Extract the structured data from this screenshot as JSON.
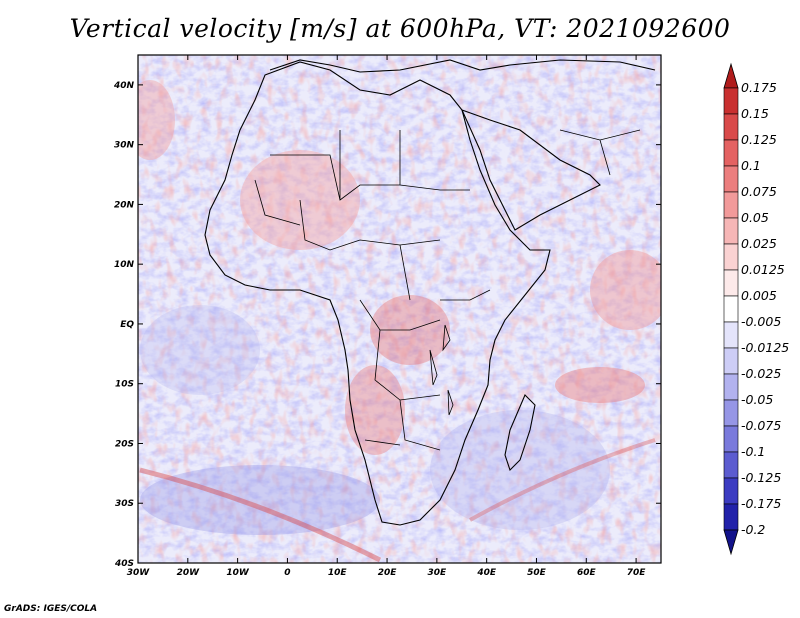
{
  "title": "Vertical velocity [m/s] at 600hPa, VT: 2021092600",
  "credit": "GrADS: IGES/COLA",
  "map": {
    "lat_ticks": [
      "40N",
      "30N",
      "20N",
      "10N",
      "EQ",
      "10S",
      "20S",
      "30S",
      "40S"
    ],
    "lon_ticks": [
      "30W",
      "20W",
      "10W",
      "0",
      "10E",
      "20E",
      "30E",
      "40E",
      "50E",
      "60E",
      "70E"
    ],
    "lon_range": [
      -30,
      75
    ],
    "lat_range": [
      -40,
      45
    ]
  },
  "colorbar": {
    "levels": [
      "0.175",
      "0.15",
      "0.125",
      "0.1",
      "0.075",
      "0.05",
      "0.025",
      "0.0125",
      "0.005",
      "-0.005",
      "-0.0125",
      "-0.025",
      "-0.05",
      "-0.075",
      "-0.1",
      "-0.125",
      "-0.175",
      "-0.2"
    ],
    "colors": [
      "#b01c1c",
      "#c93030",
      "#d94a4a",
      "#e46262",
      "#ec7e7e",
      "#f29a9a",
      "#f6b6b6",
      "#fad2d2",
      "#fdeaea",
      "#ffffff",
      "#e4e4fb",
      "#cdcdf6",
      "#b2b2ef",
      "#9696e6",
      "#7a7adc",
      "#5c5cd0",
      "#3c3cc2",
      "#2222aa",
      "#12128a"
    ]
  }
}
